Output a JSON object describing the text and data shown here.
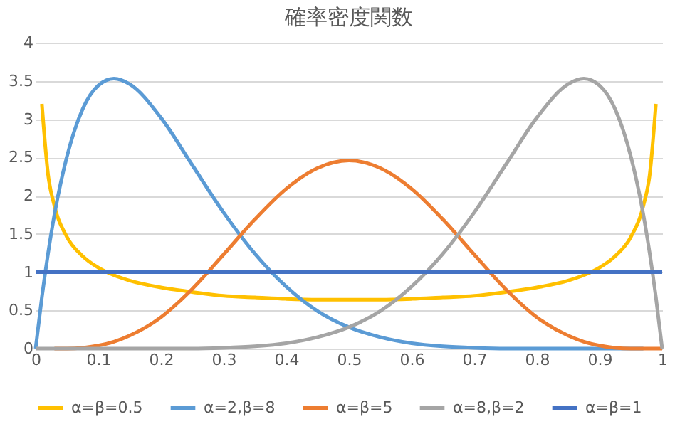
{
  "chart_data": {
    "type": "line",
    "title": "確率密度関数",
    "x": [
      0,
      0.01,
      0.02,
      0.03,
      0.05,
      0.075,
      0.1,
      0.125,
      0.15,
      0.2,
      0.25,
      0.3,
      0.35,
      0.4,
      0.45,
      0.5,
      0.55,
      0.6,
      0.65,
      0.7,
      0.75,
      0.8,
      0.85,
      0.875,
      0.9,
      0.925,
      0.95,
      0.97,
      0.98,
      0.99,
      1
    ],
    "series": [
      {
        "name": "α=β=0.5",
        "color": "#ffc000",
        "values": [
          null,
          3.2,
          2.27,
          1.87,
          1.46,
          1.21,
          1.06,
          0.96,
          0.89,
          0.8,
          0.74,
          0.69,
          0.67,
          0.65,
          0.64,
          0.64,
          0.64,
          0.65,
          0.67,
          0.69,
          0.74,
          0.8,
          0.89,
          0.96,
          1.06,
          1.21,
          1.46,
          1.87,
          2.27,
          3.2,
          null
        ]
      },
      {
        "name": "α=2,β=8",
        "color": "#5b9bd5",
        "values": [
          0,
          0.67,
          1.25,
          1.75,
          2.51,
          3.13,
          3.44,
          3.53,
          3.46,
          3.02,
          2.4,
          1.78,
          1.24,
          0.81,
          0.49,
          0.28,
          0.15,
          0.07,
          0.03,
          0.01,
          0,
          0,
          0,
          0,
          0,
          0,
          0,
          0,
          null,
          null,
          null
        ]
      },
      {
        "name": "α=β=5",
        "color": "#ed7d31",
        "values": [
          null,
          null,
          null,
          0,
          0,
          0.01,
          0.04,
          0.09,
          0.17,
          0.41,
          0.78,
          1.23,
          1.69,
          2.09,
          2.36,
          2.46,
          2.36,
          2.09,
          1.69,
          1.23,
          0.78,
          0.41,
          0.17,
          0.09,
          0.04,
          0.01,
          0,
          0,
          0,
          0,
          0
        ]
      },
      {
        "name": "α=8,β=2",
        "color": "#a5a5a5",
        "values": [
          0,
          0,
          0,
          0,
          0,
          0,
          0,
          0,
          0,
          0,
          0,
          0.01,
          0.03,
          0.07,
          0.15,
          0.28,
          0.49,
          0.81,
          1.24,
          1.78,
          2.4,
          3.02,
          3.46,
          3.53,
          3.44,
          3.13,
          2.51,
          1.75,
          1.25,
          0.67,
          0
        ]
      },
      {
        "name": "α=β=1",
        "color": "#4472c4",
        "values": [
          1,
          1,
          1,
          1,
          1,
          1,
          1,
          1,
          1,
          1,
          1,
          1,
          1,
          1,
          1,
          1,
          1,
          1,
          1,
          1,
          1,
          1,
          1,
          1,
          1,
          1,
          1,
          1,
          1,
          1,
          1
        ]
      }
    ],
    "xlim": [
      0,
      1
    ],
    "xticks": [
      0,
      0.1,
      0.2,
      0.3,
      0.4,
      0.5,
      0.6,
      0.7,
      0.8,
      0.9,
      1
    ],
    "ylim": [
      0,
      4
    ],
    "yticks": [
      0,
      0.5,
      1,
      1.5,
      2,
      2.5,
      3,
      3.5,
      4
    ],
    "grid": "y",
    "legend": "bottom",
    "marker": "none",
    "line_style": "solid"
  }
}
